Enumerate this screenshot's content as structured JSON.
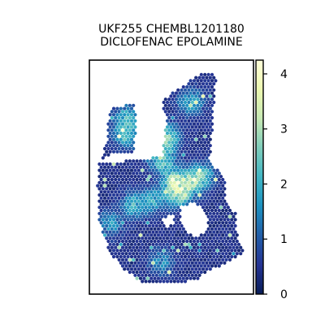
{
  "chart_data": {
    "type": "heatmap",
    "title_lines": [
      "UKF255 CHEMBL1201180",
      "DICLOFENAC EPOLAMINE"
    ],
    "colorbar": {
      "vmin": 0,
      "vmax": 4.25,
      "ticks": [
        0,
        1,
        2,
        3,
        4
      ],
      "tick_labels": [
        "0",
        "1",
        "2",
        "3",
        "4"
      ],
      "colormap": "YlGnBu",
      "colors": [
        "#081d58",
        "#253494",
        "#225ea8",
        "#1d91c0",
        "#41b6c4",
        "#7fcdbb",
        "#c7e9b4",
        "#edf8b1",
        "#ffffd9"
      ]
    },
    "background_value": 0.25,
    "hotspots": [
      {
        "x": 0.23,
        "y": 0.24,
        "value": 1.6
      },
      {
        "x": 0.22,
        "y": 0.32,
        "value": 2.0
      },
      {
        "x": 0.47,
        "y": 0.33,
        "value": 2.6
      },
      {
        "x": 0.44,
        "y": 0.42,
        "value": 2.3
      },
      {
        "x": 0.62,
        "y": 0.18,
        "value": 1.6
      },
      {
        "x": 0.52,
        "y": 0.52,
        "value": 2.6
      },
      {
        "x": 0.55,
        "y": 0.58,
        "value": 2.1
      },
      {
        "x": 0.63,
        "y": 0.52,
        "value": 1.8
      },
      {
        "x": 0.69,
        "y": 0.49,
        "value": 1.6
      },
      {
        "x": 0.27,
        "y": 0.62,
        "value": 1.7
      },
      {
        "x": 0.39,
        "y": 0.6,
        "value": 1.5
      },
      {
        "x": 0.12,
        "y": 0.7,
        "value": 1.4
      },
      {
        "x": 0.44,
        "y": 0.86,
        "value": 1.3
      }
    ]
  }
}
